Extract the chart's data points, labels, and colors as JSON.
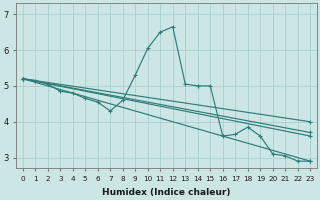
{
  "xlabel": "Humidex (Indice chaleur)",
  "ylabel": "",
  "bg_color": "#cce5e5",
  "line_color": "#2e7d78",
  "grid_color": "#aacfcf",
  "ylim": [
    2.7,
    7.3
  ],
  "xlim": [
    -0.5,
    23.5
  ],
  "yticks": [
    3,
    4,
    5,
    6,
    7
  ],
  "xticks": [
    0,
    1,
    2,
    3,
    4,
    5,
    6,
    7,
    8,
    9,
    10,
    11,
    12,
    13,
    14,
    15,
    16,
    17,
    18,
    19,
    20,
    21,
    22,
    23
  ],
  "series": [
    {
      "x": [
        0,
        1,
        2,
        3,
        4,
        5,
        6,
        7,
        8,
        9,
        10,
        11,
        12,
        13,
        14,
        15,
        16,
        17,
        18,
        19,
        20,
        21,
        22,
        23
      ],
      "y": [
        5.2,
        5.15,
        5.05,
        4.85,
        4.8,
        4.65,
        4.55,
        4.3,
        4.6,
        5.3,
        6.05,
        6.5,
        6.65,
        5.05,
        5.0,
        5.0,
        3.6,
        3.65,
        3.85,
        3.6,
        3.1,
        3.05,
        2.9,
        2.9
      ]
    },
    {
      "x": [
        0,
        23
      ],
      "y": [
        5.2,
        2.9
      ]
    },
    {
      "x": [
        0,
        23
      ],
      "y": [
        5.2,
        3.6
      ]
    },
    {
      "x": [
        0,
        23
      ],
      "y": [
        5.2,
        3.7
      ]
    },
    {
      "x": [
        0,
        23
      ],
      "y": [
        5.2,
        4.0
      ]
    }
  ]
}
